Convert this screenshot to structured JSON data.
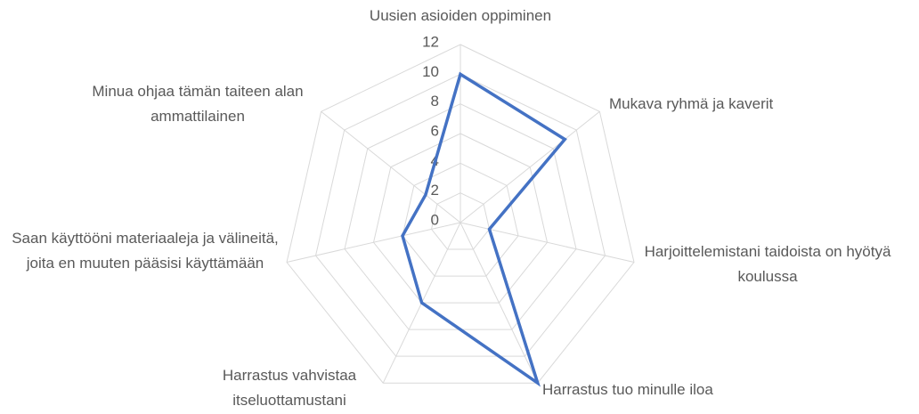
{
  "chart_data": {
    "type": "radar",
    "categories": [
      "Uusien asioiden oppiminen",
      "Mukava ryhmä ja kaverit",
      "Harjoittelemistani taidoista on hyötyä koulussa",
      "Harrastus tuo minulle iloa",
      "Harrastus vahvistaa itseluottamustani",
      "Saan käyttööni materiaaleja ja välineitä, joita en muuten pääsisi käyttämään",
      "Minua ohjaa tämän taiteen alan ammattilainen"
    ],
    "values": [
      10,
      9,
      2,
      12,
      6,
      4,
      3
    ],
    "color": "#4472c4",
    "ylim": [
      0,
      12
    ],
    "yticks": [
      0,
      2,
      4,
      6,
      8,
      10,
      12
    ],
    "grid": true
  }
}
